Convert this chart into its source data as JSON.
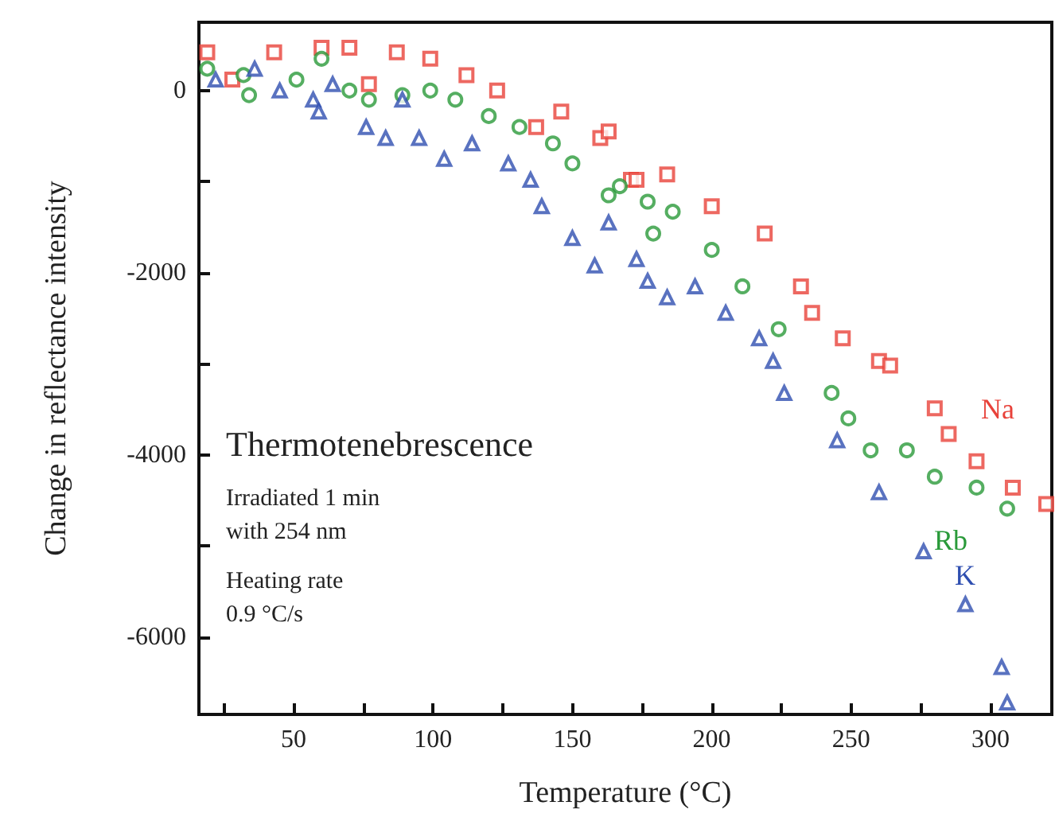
{
  "chart_data": {
    "type": "scatter",
    "xlabel": "Temperature (°C)",
    "ylabel": "Change in reflectance intensity",
    "annotations": [
      "Thermotenebrescence",
      "Irradiated 1 min\nwith 254 nm",
      "Heating rate\n0.9 °C/s"
    ],
    "xlim": [
      16,
      322
    ],
    "ylim": [
      -6850,
      750
    ],
    "xticks": [
      {
        "value": 25,
        "label": null
      },
      50,
      {
        "value": 75,
        "label": null
      },
      100,
      {
        "value": 125,
        "label": null
      },
      150,
      {
        "value": 175,
        "label": null
      },
      200,
      {
        "value": 225,
        "label": null
      },
      250,
      {
        "value": 275,
        "label": null
      },
      300
    ],
    "yticks": [
      -6000,
      {
        "value": -5000,
        "label": null
      },
      -4000,
      {
        "value": -3000,
        "label": null
      },
      -2000,
      {
        "value": -1000,
        "label": null
      },
      0
    ],
    "grid": false,
    "legend": false,
    "series": [
      {
        "name": "Na",
        "color": "#e8423a",
        "marker": "square",
        "x": [
          19,
          28,
          43,
          60,
          70,
          77,
          87,
          99,
          112,
          123,
          137,
          146,
          160,
          163,
          171,
          173,
          184,
          200,
          219,
          232,
          236,
          247,
          260,
          264,
          280,
          285,
          295,
          308,
          320
        ],
        "values": [
          420,
          120,
          420,
          470,
          470,
          70,
          420,
          350,
          170,
          0,
          -400,
          -230,
          -520,
          -450,
          -980,
          -980,
          -920,
          -1270,
          -1570,
          -2150,
          -2440,
          -2720,
          -2970,
          -3020,
          -3490,
          -3770,
          -4070,
          -4360,
          -4540
        ]
      },
      {
        "name": "Rb",
        "color": "#2a9a3a",
        "marker": "circle",
        "x": [
          19,
          32,
          34,
          51,
          60,
          70,
          77,
          89,
          99,
          108,
          120,
          131,
          143,
          150,
          163,
          167,
          177,
          179,
          186,
          200,
          211,
          224,
          243,
          249,
          257,
          270,
          280,
          295,
          306
        ],
        "values": [
          240,
          170,
          -50,
          120,
          350,
          0,
          -100,
          -50,
          0,
          -100,
          -280,
          -400,
          -580,
          -800,
          -1150,
          -1050,
          -1220,
          -1570,
          -1330,
          -1750,
          -2150,
          -2620,
          -3320,
          -3600,
          -3950,
          -3950,
          -4240,
          -4360,
          -4590
        ]
      },
      {
        "name": "K",
        "color": "#2f4fb0",
        "marker": "triangle",
        "x": [
          22,
          36,
          45,
          57,
          59,
          64,
          76,
          83,
          89,
          95,
          104,
          114,
          127,
          135,
          139,
          150,
          158,
          163,
          173,
          177,
          184,
          194,
          205,
          217,
          222,
          226,
          245,
          260,
          276,
          291,
          304,
          306
        ],
        "values": [
          120,
          240,
          0,
          -100,
          -230,
          70,
          -400,
          -520,
          -100,
          -520,
          -750,
          -580,
          -800,
          -980,
          -1270,
          -1620,
          -1920,
          -1450,
          -1850,
          -2090,
          -2270,
          -2150,
          -2440,
          -2720,
          -2970,
          -3320,
          -3840,
          -4410,
          -5060,
          -5640,
          -6330,
          -6720
        ]
      }
    ]
  }
}
